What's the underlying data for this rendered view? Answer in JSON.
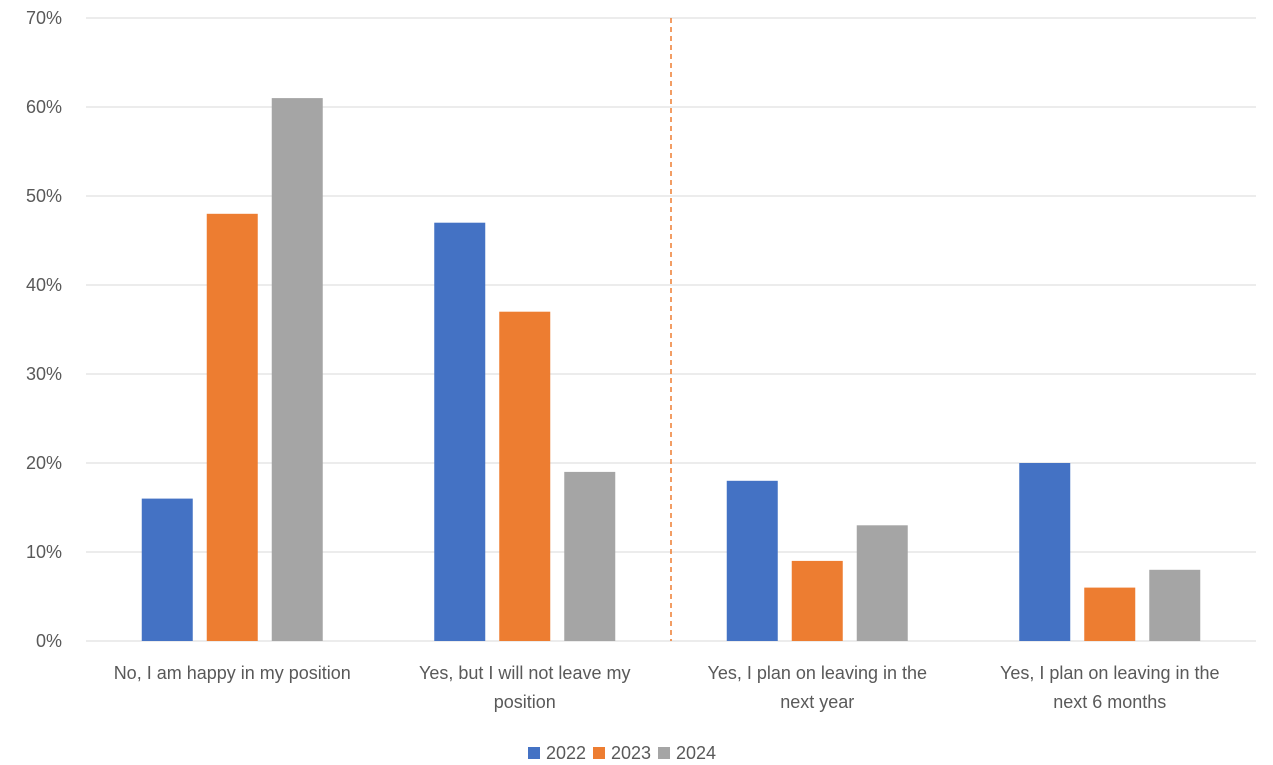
{
  "chart_data": {
    "type": "bar",
    "categories": [
      [
        "No, I am happy in my position"
      ],
      [
        "Yes, but I will not leave my",
        "position"
      ],
      [
        "Yes, I plan on leaving in the",
        "next year"
      ],
      [
        "Yes, I plan on leaving in the",
        "next 6 months"
      ]
    ],
    "series": [
      {
        "name": "2022",
        "color": "#4472C4",
        "values": [
          16,
          47,
          18,
          20
        ]
      },
      {
        "name": "2023",
        "color": "#ED7D31",
        "values": [
          48,
          37,
          9,
          6
        ]
      },
      {
        "name": "2024",
        "color": "#A5A5A5",
        "values": [
          61,
          19,
          13,
          8
        ]
      }
    ],
    "yticks": [
      "0%",
      "10%",
      "20%",
      "30%",
      "40%",
      "50%",
      "60%",
      "70%"
    ],
    "ylim": [
      0,
      70
    ],
    "grid": true,
    "divider": {
      "after_category": 1,
      "style": "dashed",
      "color": "#ED7D31"
    },
    "legend_position": "bottom",
    "title": "",
    "xlabel": "",
    "ylabel": ""
  }
}
